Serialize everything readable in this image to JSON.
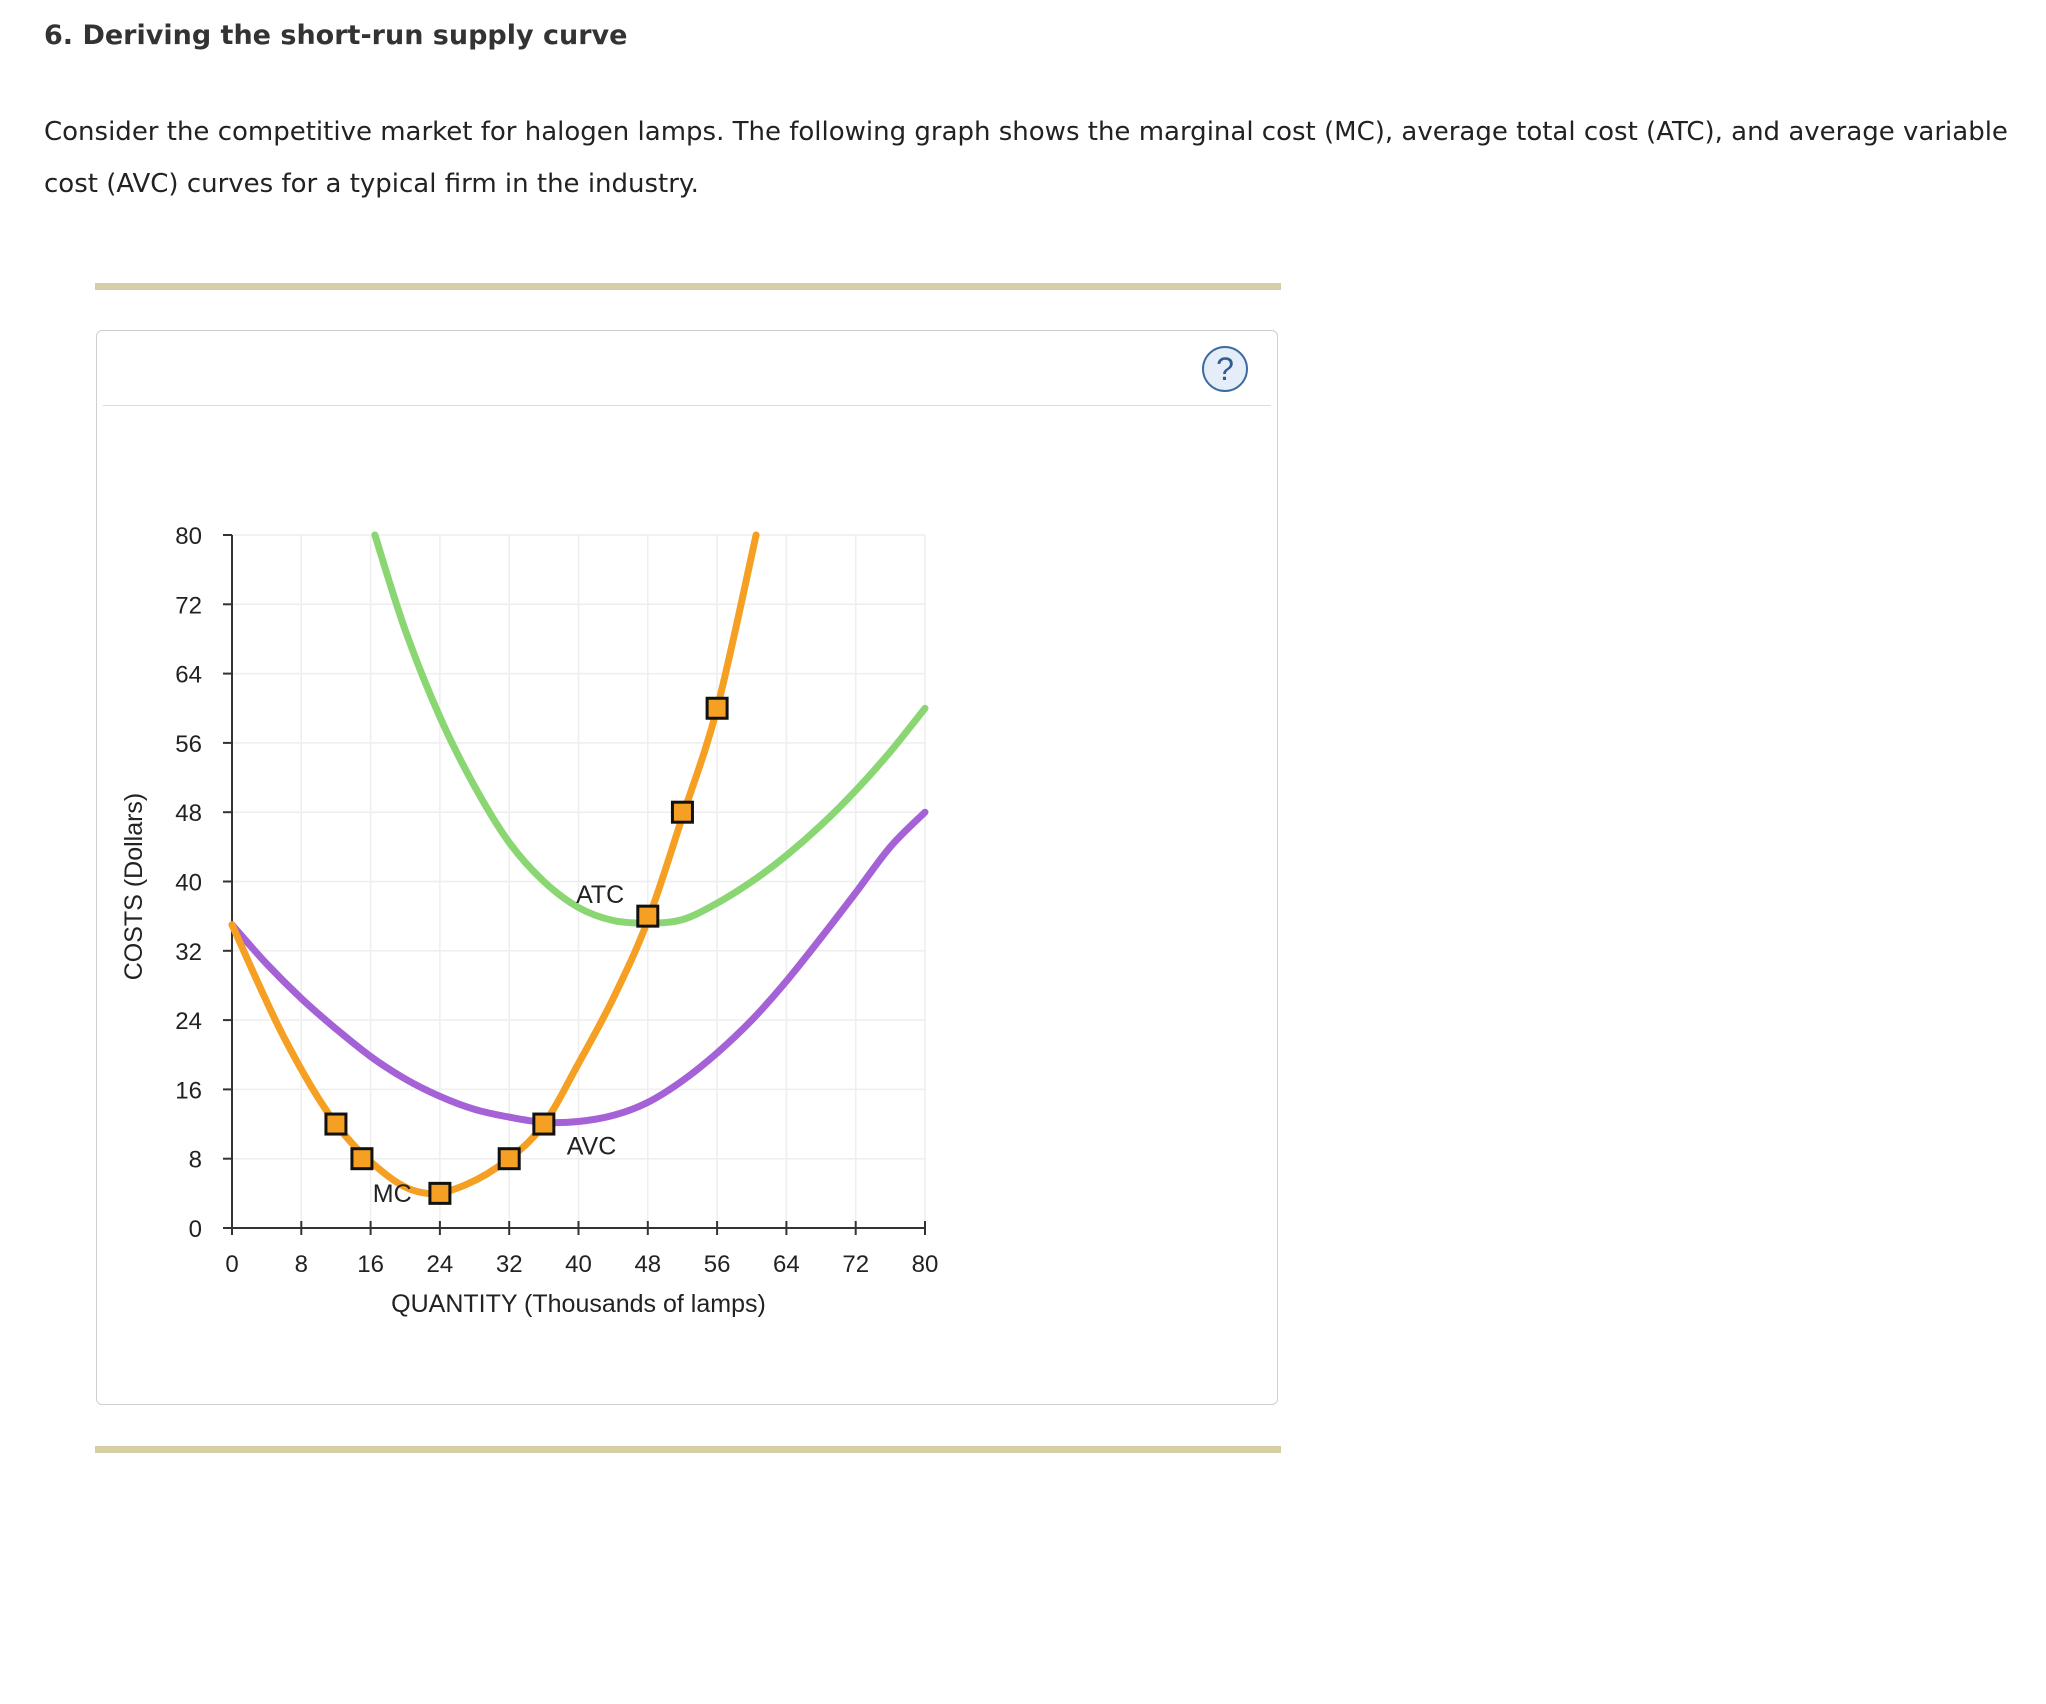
{
  "question": {
    "title": "6. Deriving the short-run supply curve",
    "text": "Consider the competitive market for halogen lamps. The following graph shows the marginal cost (MC), average total cost (ATC), and average variable cost (AVC) curves for a typical firm in the industry."
  },
  "help": {
    "label": "?"
  },
  "colors": {
    "mc": "#f5a023",
    "atc": "#8ad672",
    "avc": "#a462d6",
    "marker_fill": "#f5a023",
    "marker_stroke": "#111111",
    "grid": "#eeeeee",
    "axis": "#333333",
    "rule": "#d6cfa6"
  },
  "chart_data": {
    "type": "line",
    "xlabel": "QUANTITY (Thousands of lamps)",
    "ylabel": "COSTS (Dollars)",
    "xlim": [
      0,
      80
    ],
    "ylim": [
      0,
      80
    ],
    "xticks": [
      0,
      8,
      16,
      24,
      32,
      40,
      48,
      56,
      64,
      72,
      80
    ],
    "yticks": [
      0,
      8,
      16,
      24,
      32,
      40,
      48,
      56,
      64,
      72,
      80
    ],
    "grid": true,
    "series": [
      {
        "name": "MC",
        "color": "#f5a023",
        "x": [
          0,
          6,
          12,
          18,
          22.5,
          27,
          32,
          36,
          40,
          44,
          48,
          52,
          56,
          60.5
        ],
        "y": [
          35,
          22,
          12,
          6,
          4,
          5,
          8,
          12,
          19,
          26.5,
          35.5,
          47.5,
          60,
          80
        ]
      },
      {
        "name": "ATC",
        "color": "#8ad672",
        "x": [
          16.5,
          20,
          24,
          28,
          32,
          36,
          40,
          44,
          48,
          52,
          56,
          60,
          64,
          68,
          72,
          76,
          80
        ],
        "y": [
          80,
          69,
          59,
          51,
          44.5,
          40,
          37,
          35.5,
          35.2,
          35.6,
          37.5,
          40,
          43,
          46.5,
          50.5,
          55,
          60
        ]
      },
      {
        "name": "AVC",
        "color": "#a462d6",
        "x": [
          0,
          4,
          8,
          12,
          16,
          20,
          24,
          28,
          32,
          36,
          40,
          44,
          48,
          52,
          56,
          60,
          64,
          68,
          72,
          76,
          80
        ],
        "y": [
          35,
          30.5,
          26.5,
          23,
          19.8,
          17.2,
          15.2,
          13.7,
          12.8,
          12.2,
          12.3,
          13,
          14.5,
          17,
          20.2,
          24,
          28.5,
          33.5,
          38.7,
          44,
          48
        ]
      }
    ],
    "points": [
      {
        "x": 12,
        "y": 12
      },
      {
        "x": 15,
        "y": 8
      },
      {
        "x": 24,
        "y": 4
      },
      {
        "x": 32,
        "y": 8
      },
      {
        "x": 36,
        "y": 12
      },
      {
        "x": 48,
        "y": 36
      },
      {
        "x": 52,
        "y": 48
      },
      {
        "x": 56,
        "y": 60
      }
    ],
    "annotations": [
      {
        "text": "MC",
        "x": 18.5,
        "y": 3
      },
      {
        "text": "ATC",
        "x": 42.5,
        "y": 37.5
      },
      {
        "text": "AVC",
        "x": 41.5,
        "y": 8.5
      }
    ]
  }
}
